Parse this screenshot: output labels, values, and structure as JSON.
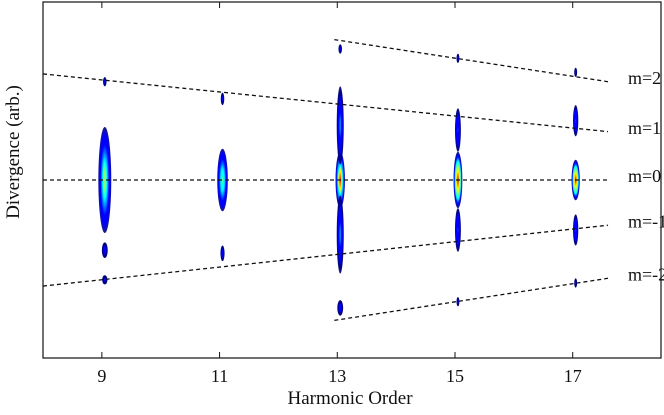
{
  "chart_data": {
    "type": "heatmap",
    "title": "",
    "xlabel": "Harmonic Order",
    "ylabel": "Divergence (arb.)",
    "xlim": [
      8.0,
      18.5
    ],
    "ylim": [
      -1.0,
      1.0
    ],
    "xticks": [
      9,
      11,
      13,
      15,
      17
    ],
    "grid": false,
    "colormap": [
      "#00007f",
      "#0000ff",
      "#007fff",
      "#00ffff",
      "#7fff7f",
      "#ffff00",
      "#ff7f00",
      "#ff0000",
      "#7f0000"
    ],
    "harmonics": [
      {
        "order": 9,
        "x": 9.05,
        "peak": 0.55,
        "lobes": [
          {
            "y": 0.0,
            "h": 0.34,
            "w": 0.22,
            "i": 0.55
          },
          {
            "y": -0.45,
            "h": 0.05,
            "w": 0.1,
            "i": 0.15
          },
          {
            "y": -0.64,
            "h": 0.03,
            "w": 0.09,
            "i": 0.12
          },
          {
            "y": 0.63,
            "h": 0.03,
            "w": 0.06,
            "i": 0.1
          }
        ]
      },
      {
        "order": 11,
        "x": 11.05,
        "peak": 0.5,
        "lobes": [
          {
            "y": 0.0,
            "h": 0.2,
            "w": 0.18,
            "i": 0.5
          },
          {
            "y": -0.47,
            "h": 0.05,
            "w": 0.07,
            "i": 0.15
          },
          {
            "y": 0.52,
            "h": 0.04,
            "w": 0.06,
            "i": 0.12
          }
        ]
      },
      {
        "order": 13,
        "x": 13.05,
        "peak": 0.85,
        "lobes": [
          {
            "y": 0.0,
            "h": 0.18,
            "w": 0.16,
            "i": 0.85
          },
          {
            "y": 0.35,
            "h": 0.25,
            "w": 0.12,
            "i": 0.25
          },
          {
            "y": -0.35,
            "h": 0.25,
            "w": 0.12,
            "i": 0.25
          },
          {
            "y": -0.82,
            "h": 0.05,
            "w": 0.1,
            "i": 0.18
          },
          {
            "y": 0.84,
            "h": 0.03,
            "w": 0.06,
            "i": 0.12
          }
        ]
      },
      {
        "order": 15,
        "x": 15.05,
        "peak": 0.95,
        "lobes": [
          {
            "y": 0.0,
            "h": 0.18,
            "w": 0.15,
            "i": 0.95
          },
          {
            "y": 0.32,
            "h": 0.14,
            "w": 0.1,
            "i": 0.22
          },
          {
            "y": -0.32,
            "h": 0.14,
            "w": 0.1,
            "i": 0.22
          },
          {
            "y": -0.78,
            "h": 0.03,
            "w": 0.05,
            "i": 0.12
          },
          {
            "y": 0.78,
            "h": 0.03,
            "w": 0.05,
            "i": 0.12
          }
        ]
      },
      {
        "order": 17,
        "x": 17.05,
        "peak": 0.95,
        "lobes": [
          {
            "y": 0.0,
            "h": 0.13,
            "w": 0.14,
            "i": 0.95
          },
          {
            "y": 0.38,
            "h": 0.1,
            "w": 0.09,
            "i": 0.22
          },
          {
            "y": -0.32,
            "h": 0.1,
            "w": 0.09,
            "i": 0.22
          },
          {
            "y": -0.66,
            "h": 0.03,
            "w": 0.05,
            "i": 0.12
          },
          {
            "y": 0.69,
            "h": 0.03,
            "w": 0.05,
            "i": 0.12
          }
        ]
      }
    ],
    "order_lines": [
      {
        "label": "m=2",
        "x0": 12.95,
        "y0": 0.9,
        "x1": 17.6,
        "y1": 0.63
      },
      {
        "label": "m=1",
        "x0": 8.0,
        "y0": 0.68,
        "x1": 17.6,
        "y1": 0.31
      },
      {
        "label": "m=0",
        "x0": 8.0,
        "y0": 0.0,
        "x1": 17.6,
        "y1": 0.0
      },
      {
        "label": "m=-1",
        "x0": 8.0,
        "y0": -0.68,
        "x1": 17.6,
        "y1": -0.29
      },
      {
        "label": "m=-2",
        "x0": 12.95,
        "y0": -0.9,
        "x1": 17.6,
        "y1": -0.63
      }
    ]
  }
}
